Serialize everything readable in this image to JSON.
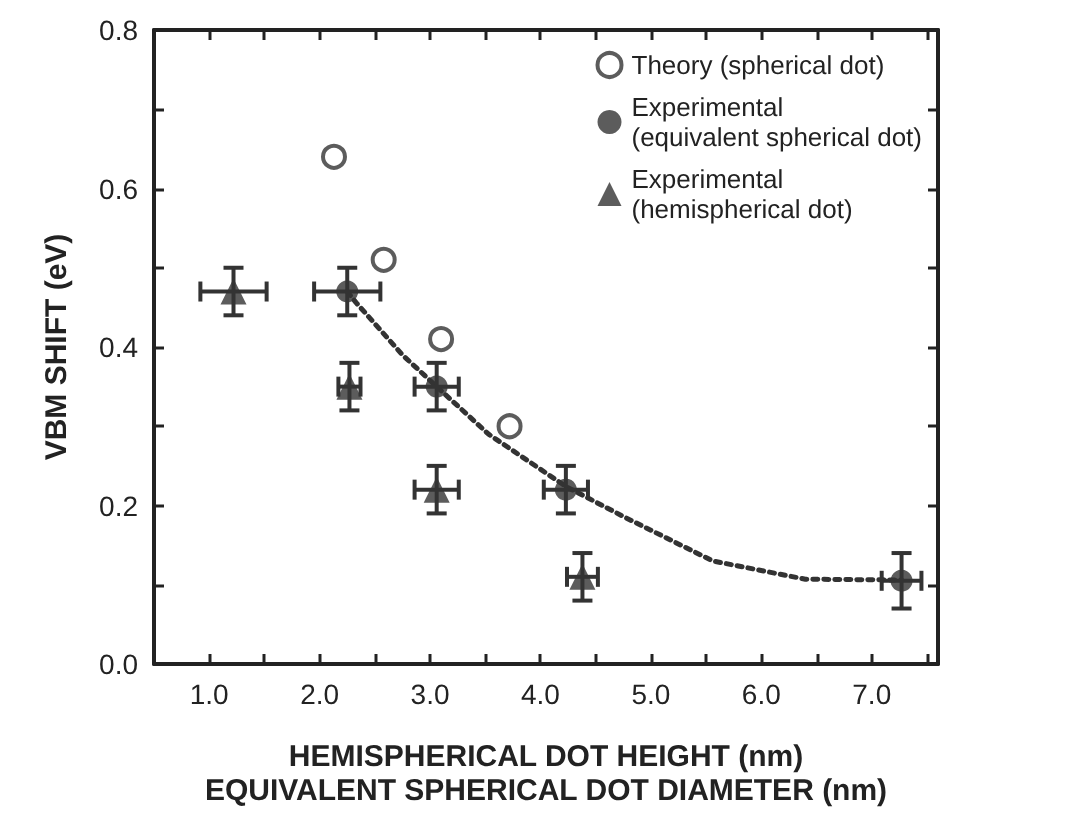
{
  "chart_data": {
    "type": "scatter",
    "xlabel": "HEMISPHERICAL DOT HEIGHT (nm)\nEQUIVALENT SPHERICAL DOT DIAMETER (nm)",
    "ylabel": "VBM SHIFT (eV)",
    "xlim": [
      0.5,
      7.6
    ],
    "xticks": [
      {
        "value": 1,
        "label": "1.0"
      },
      {
        "value": 1.5,
        "label": null
      },
      {
        "value": 2,
        "label": "2.0"
      },
      {
        "value": 2.5,
        "label": null
      },
      {
        "value": 3,
        "label": "3.0"
      },
      {
        "value": 3.5,
        "label": null
      },
      {
        "value": 4,
        "label": "4.0"
      },
      {
        "value": 4.5,
        "label": null
      },
      {
        "value": 5,
        "label": "5.0"
      },
      {
        "value": 5.5,
        "label": null
      },
      {
        "value": 6,
        "label": "6.0"
      },
      {
        "value": 6.5,
        "label": null
      },
      {
        "value": 7,
        "label": "7.0"
      },
      {
        "value": 7.5,
        "label": null
      }
    ],
    "ylim": [
      0,
      0.8
    ],
    "yticks": [
      {
        "value": 0,
        "label": "0.0"
      },
      {
        "value": 0.1,
        "label": null
      },
      {
        "value": 0.2,
        "label": "0.2"
      },
      {
        "value": 0.3,
        "label": null
      },
      {
        "value": 0.4,
        "label": "0.4"
      },
      {
        "value": 0.5,
        "label": null
      },
      {
        "value": 0.6,
        "label": "0.6"
      },
      {
        "value": 0.7,
        "label": null
      },
      {
        "value": 0.8,
        "label": "0.8"
      }
    ],
    "legend": "top right",
    "grid": false,
    "series": [
      {
        "type": "line",
        "color": "#333333",
        "line_style": "dotted",
        "marker": "none",
        "x": [
          2.25,
          2.33,
          2.75,
          3.06,
          3.53,
          4.23,
          4.78,
          5.56,
          6.4,
          7.27
        ],
        "values": [
          0.47,
          0.456,
          0.39,
          0.35,
          0.29,
          0.224,
          0.184,
          0.13,
          0.107,
          0.106
        ]
      },
      {
        "name": "Theory (spherical dot)",
        "color": "#333333",
        "marker": "circle-open",
        "x": [
          2.13,
          2.58,
          3.1,
          3.72
        ],
        "values": [
          0.64,
          0.51,
          0.41,
          0.3
        ]
      },
      {
        "name": "Experimental\n(equivalent spherical dot)",
        "color": "#333333",
        "marker": "circle",
        "x": [
          2.25,
          3.06,
          4.23,
          7.27
        ],
        "values": [
          0.47,
          0.35,
          0.22,
          0.105
        ],
        "errors": [
          0.03,
          0.03,
          0.03,
          0.035
        ],
        "xerrors": [
          0.3,
          0.2,
          0.2,
          0.18
        ]
      },
      {
        "name": "Experimental\n(hemispherical dot)",
        "color": "#333333",
        "marker": "triangle",
        "x": [
          1.22,
          2.27,
          3.06,
          4.38
        ],
        "values": [
          0.47,
          0.35,
          0.22,
          0.11
        ],
        "errors": [
          0.03,
          0.03,
          0.03,
          0.03
        ],
        "xerrors": [
          0.3,
          0.1,
          0.2,
          0.14
        ]
      }
    ]
  }
}
